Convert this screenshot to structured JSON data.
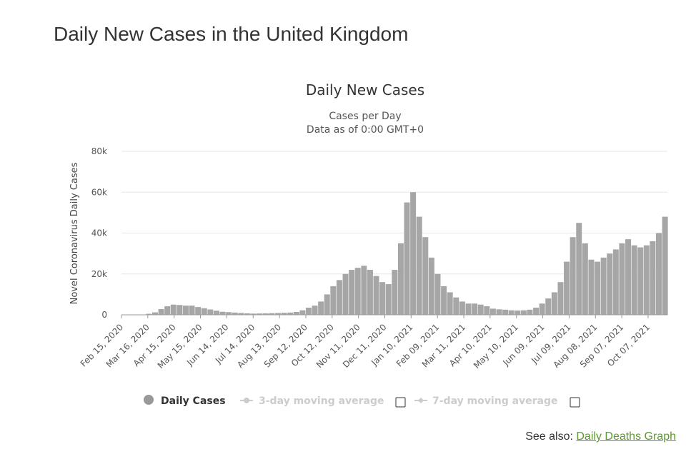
{
  "page": {
    "title": "Daily New Cases in the United Kingdom"
  },
  "see_also": {
    "prefix": "See also:",
    "link": "Daily Deaths Graph",
    "link_color": "#5b9a2f"
  },
  "legend": [
    {
      "label": "Daily Cases",
      "active": true,
      "color": "#999999"
    },
    {
      "label": "3-day moving average",
      "active": false,
      "color": "#cccccc",
      "checkbox": true
    },
    {
      "label": "7-day moving average",
      "active": false,
      "color": "#cccccc",
      "checkbox": true
    }
  ],
  "chart_data": {
    "type": "bar",
    "title": "Daily New Cases",
    "subtitle_lines": [
      "Cases per Day",
      "Data as of 0:00 GMT+0"
    ],
    "ylabel": "Novel Coronavirus Daily Cases",
    "xlabel": "",
    "ylim": [
      0,
      80000
    ],
    "yticks": [
      0,
      20000,
      40000,
      60000,
      80000
    ],
    "ytick_labels": [
      "0",
      "20k",
      "40k",
      "60k",
      "80k"
    ],
    "grid": true,
    "bar_color": "#a6a6a6",
    "x_start": "Feb 15, 2020",
    "x_end": "Oct 29, 2021",
    "xtick_labels": [
      "Feb 15, 2020",
      "Mar 16, 2020",
      "Apr 15, 2020",
      "May 15, 2020",
      "Jun 14, 2020",
      "Jul 14, 2020",
      "Aug 13, 2020",
      "Sep 12, 2020",
      "Oct 12, 2020",
      "Nov 11, 2020",
      "Dec 11, 2020",
      "Jan 10, 2021",
      "Feb 09, 2021",
      "Mar 11, 2021",
      "Apr 10, 2021",
      "May 10, 2021",
      "Jun 09, 2021",
      "Jul 09, 2021",
      "Aug 08, 2021",
      "Sep 07, 2021",
      "Oct 07, 2021"
    ],
    "weekly_series": {
      "name": "Daily Cases",
      "x": [
        "Feb 15, 2020",
        "Feb 22, 2020",
        "Feb 29, 2020",
        "Mar 07, 2020",
        "Mar 14, 2020",
        "Mar 21, 2020",
        "Mar 28, 2020",
        "Apr 04, 2020",
        "Apr 11, 2020",
        "Apr 18, 2020",
        "Apr 25, 2020",
        "May 02, 2020",
        "May 09, 2020",
        "May 16, 2020",
        "May 23, 2020",
        "May 30, 2020",
        "Jun 06, 2020",
        "Jun 13, 2020",
        "Jun 20, 2020",
        "Jun 27, 2020",
        "Jul 04, 2020",
        "Jul 11, 2020",
        "Jul 18, 2020",
        "Jul 25, 2020",
        "Aug 01, 2020",
        "Aug 08, 2020",
        "Aug 15, 2020",
        "Aug 22, 2020",
        "Aug 29, 2020",
        "Sep 05, 2020",
        "Sep 12, 2020",
        "Sep 19, 2020",
        "Sep 26, 2020",
        "Oct 03, 2020",
        "Oct 10, 2020",
        "Oct 17, 2020",
        "Oct 24, 2020",
        "Oct 31, 2020",
        "Nov 07, 2020",
        "Nov 14, 2020",
        "Nov 21, 2020",
        "Nov 28, 2020",
        "Dec 05, 2020",
        "Dec 12, 2020",
        "Dec 19, 2020",
        "Dec 26, 2020",
        "Jan 02, 2021",
        "Jan 09, 2021",
        "Jan 16, 2021",
        "Jan 23, 2021",
        "Jan 30, 2021",
        "Feb 06, 2021",
        "Feb 13, 2021",
        "Feb 20, 2021",
        "Feb 27, 2021",
        "Mar 06, 2021",
        "Mar 13, 2021",
        "Mar 20, 2021",
        "Mar 27, 2021",
        "Apr 03, 2021",
        "Apr 10, 2021",
        "Apr 17, 2021",
        "Apr 24, 2021",
        "May 01, 2021",
        "May 08, 2021",
        "May 15, 2021",
        "May 22, 2021",
        "May 29, 2021",
        "Jun 05, 2021",
        "Jun 12, 2021",
        "Jun 19, 2021",
        "Jun 26, 2021",
        "Jul 03, 2021",
        "Jul 10, 2021",
        "Jul 17, 2021",
        "Jul 24, 2021",
        "Jul 31, 2021",
        "Aug 07, 2021",
        "Aug 14, 2021",
        "Aug 21, 2021",
        "Aug 28, 2021",
        "Sep 04, 2021",
        "Sep 11, 2021",
        "Sep 18, 2021",
        "Sep 25, 2021",
        "Oct 02, 2021",
        "Oct 09, 2021",
        "Oct 16, 2021",
        "Oct 23, 2021"
      ],
      "values": [
        0,
        0,
        0,
        50,
        500,
        1200,
        2800,
        4200,
        5000,
        4800,
        4500,
        4500,
        3800,
        3200,
        2600,
        2000,
        1500,
        1300,
        1100,
        900,
        700,
        600,
        650,
        700,
        800,
        900,
        1000,
        1100,
        1400,
        2200,
        3500,
        4500,
        6500,
        10000,
        14000,
        17000,
        20000,
        22000,
        23000,
        24000,
        22000,
        19000,
        16000,
        15000,
        22000,
        35000,
        55000,
        60000,
        48000,
        38000,
        28000,
        20000,
        14000,
        11000,
        8500,
        6500,
        5500,
        5500,
        5000,
        4200,
        3000,
        2700,
        2500,
        2200,
        2100,
        2200,
        2500,
        3500,
        5500,
        8000,
        11000,
        16000,
        26000,
        38000,
        45000,
        35000,
        27000,
        26000,
        28000,
        30000,
        32000,
        35000,
        37000,
        34000,
        33000,
        34000,
        36000,
        40000,
        48000
      ]
    }
  }
}
